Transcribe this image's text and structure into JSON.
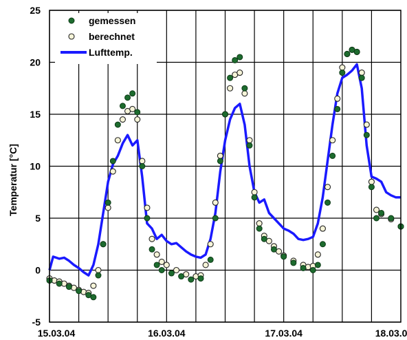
{
  "chart_data": {
    "type": "scatter",
    "title": "",
    "xlabel": "",
    "ylabel": "Temperatur [°C]",
    "ylim": [
      -5,
      25
    ],
    "xlim": [
      "15.03.04",
      "18.03.04"
    ],
    "grid": true,
    "legend_position": "top-left",
    "y_ticks": [
      "-5",
      "0",
      "5",
      "10",
      "15",
      "20",
      "25"
    ],
    "x_ticks": [
      "15.03.04",
      "16.03.04",
      "17.03.04",
      "18.03.04"
    ],
    "colors": {
      "gemessen": "#1d6b2e",
      "berechnet": "#f6f4d8",
      "Lufttemp.": "#1a1aff"
    },
    "series": [
      {
        "name": "gemessen",
        "style": "filled-marker",
        "points": [
          [
            "15.03.04 00:00",
            -1.0
          ],
          [
            "15.03.04 02:00",
            -1.3
          ],
          [
            "15.03.04 04:00",
            -1.6
          ],
          [
            "15.03.04 06:00",
            -2.0
          ],
          [
            "15.03.04 08:00",
            -2.4
          ],
          [
            "15.03.04 09:00",
            -2.6
          ],
          [
            "15.03.04 10:00",
            -0.5
          ],
          [
            "15.03.04 11:00",
            2.5
          ],
          [
            "15.03.04 12:00",
            6.5
          ],
          [
            "15.03.04 13:00",
            10.5
          ],
          [
            "15.03.04 14:00",
            14.0
          ],
          [
            "15.03.04 15:00",
            15.8
          ],
          [
            "15.03.04 16:00",
            16.6
          ],
          [
            "15.03.04 17:00",
            17.0
          ],
          [
            "15.03.04 18:00",
            15.2
          ],
          [
            "15.03.04 19:00",
            10.0
          ],
          [
            "15.03.04 20:00",
            5.0
          ],
          [
            "15.03.04 21:00",
            2.0
          ],
          [
            "15.03.04 22:00",
            0.5
          ],
          [
            "15.03.04 23:00",
            0.0
          ],
          [
            "16.03.04 01:00",
            -0.3
          ],
          [
            "16.03.04 03:00",
            -0.6
          ],
          [
            "16.03.04 05:00",
            -0.9
          ],
          [
            "16.03.04 07:00",
            -0.8
          ],
          [
            "16.03.04 09:00",
            1.0
          ],
          [
            "16.03.04 10:00",
            5.0
          ],
          [
            "16.03.04 11:00",
            10.5
          ],
          [
            "16.03.04 12:00",
            15.0
          ],
          [
            "16.03.04 13:00",
            18.5
          ],
          [
            "16.03.04 14:00",
            20.2
          ],
          [
            "16.03.04 15:00",
            20.5
          ],
          [
            "16.03.04 16:00",
            17.5
          ],
          [
            "16.03.04 17:00",
            12.0
          ],
          [
            "16.03.04 18:00",
            7.0
          ],
          [
            "16.03.04 19:00",
            4.0
          ],
          [
            "16.03.04 20:00",
            3.0
          ],
          [
            "16.03.04 22:00",
            2.0
          ],
          [
            "17.03.04 00:00",
            1.3
          ],
          [
            "17.03.04 02:00",
            0.7
          ],
          [
            "17.03.04 04:00",
            0.2
          ],
          [
            "17.03.04 06:00",
            0.0
          ],
          [
            "17.03.04 07:00",
            0.5
          ],
          [
            "17.03.04 08:00",
            2.5
          ],
          [
            "17.03.04 09:00",
            6.5
          ],
          [
            "17.03.04 10:00",
            11.0
          ],
          [
            "17.03.04 11:00",
            15.5
          ],
          [
            "17.03.04 12:00",
            19.0
          ],
          [
            "17.03.04 13:00",
            20.8
          ],
          [
            "17.03.04 14:00",
            21.2
          ],
          [
            "17.03.04 15:00",
            21.0
          ],
          [
            "17.03.04 16:00",
            18.5
          ],
          [
            "17.03.04 17:00",
            13.0
          ],
          [
            "17.03.04 18:00",
            8.0
          ],
          [
            "17.03.04 19:00",
            5.0
          ],
          [
            "17.03.04 20:00",
            5.5
          ],
          [
            "17.03.04 22:00",
            5.0
          ],
          [
            "18.03.04 00:00",
            4.2
          ]
        ]
      },
      {
        "name": "berechnet",
        "style": "open-marker",
        "points": [
          [
            "15.03.04 00:00",
            -0.8
          ],
          [
            "15.03.04 01:00",
            -1.0
          ],
          [
            "15.03.04 02:00",
            -1.1
          ],
          [
            "15.03.04 03:00",
            -1.3
          ],
          [
            "15.03.04 04:00",
            -1.5
          ],
          [
            "15.03.04 05:00",
            -1.7
          ],
          [
            "15.03.04 06:00",
            -1.9
          ],
          [
            "15.03.04 07:00",
            -2.1
          ],
          [
            "15.03.04 08:00",
            -2.2
          ],
          [
            "15.03.04 09:00",
            -1.5
          ],
          [
            "15.03.04 10:00",
            0.0
          ],
          [
            "15.03.04 11:00",
            2.5
          ],
          [
            "15.03.04 12:00",
            6.0
          ],
          [
            "15.03.04 13:00",
            9.5
          ],
          [
            "15.03.04 14:00",
            12.5
          ],
          [
            "15.03.04 15:00",
            14.5
          ],
          [
            "15.03.04 16:00",
            15.3
          ],
          [
            "15.03.04 17:00",
            15.5
          ],
          [
            "15.03.04 18:00",
            14.5
          ],
          [
            "15.03.04 19:00",
            10.5
          ],
          [
            "15.03.04 20:00",
            6.0
          ],
          [
            "15.03.04 21:00",
            3.0
          ],
          [
            "15.03.04 22:00",
            1.5
          ],
          [
            "15.03.04 23:00",
            0.8
          ],
          [
            "16.03.04 00:00",
            0.5
          ],
          [
            "16.03.04 02:00",
            0.0
          ],
          [
            "16.03.04 04:00",
            -0.4
          ],
          [
            "16.03.04 06:00",
            -0.6
          ],
          [
            "16.03.04 07:00",
            -0.5
          ],
          [
            "16.03.04 08:00",
            0.5
          ],
          [
            "16.03.04 09:00",
            2.5
          ],
          [
            "16.03.04 10:00",
            6.5
          ],
          [
            "16.03.04 11:00",
            11.0
          ],
          [
            "16.03.04 12:00",
            15.0
          ],
          [
            "16.03.04 13:00",
            17.5
          ],
          [
            "16.03.04 14:00",
            18.8
          ],
          [
            "16.03.04 15:00",
            19.0
          ],
          [
            "16.03.04 16:00",
            17.0
          ],
          [
            "16.03.04 17:00",
            12.5
          ],
          [
            "16.03.04 18:00",
            7.5
          ],
          [
            "16.03.04 19:00",
            4.5
          ],
          [
            "16.03.04 20:00",
            3.3
          ],
          [
            "16.03.04 21:00",
            2.8
          ],
          [
            "16.03.04 22:00",
            2.3
          ],
          [
            "16.03.04 23:00",
            1.8
          ],
          [
            "17.03.04 00:00",
            1.4
          ],
          [
            "17.03.04 02:00",
            0.9
          ],
          [
            "17.03.04 04:00",
            0.5
          ],
          [
            "17.03.04 05:00",
            0.3
          ],
          [
            "17.03.04 06:00",
            0.4
          ],
          [
            "17.03.04 07:00",
            1.5
          ],
          [
            "17.03.04 08:00",
            4.0
          ],
          [
            "17.03.04 09:00",
            8.0
          ],
          [
            "17.03.04 10:00",
            12.5
          ],
          [
            "17.03.04 11:00",
            16.5
          ],
          [
            "17.03.04 12:00",
            19.5
          ],
          [
            "17.03.04 13:00",
            20.8
          ],
          [
            "17.03.04 14:00",
            21.2
          ],
          [
            "17.03.04 15:00",
            21.0
          ],
          [
            "17.03.04 16:00",
            19.0
          ],
          [
            "17.03.04 17:00",
            14.0
          ],
          [
            "17.03.04 18:00",
            8.5
          ],
          [
            "17.03.04 19:00",
            5.8
          ],
          [
            "17.03.04 20:00",
            5.4
          ],
          [
            "17.03.04 22:00",
            4.9
          ],
          [
            "18.03.04 00:00",
            4.2
          ]
        ]
      },
      {
        "name": "Lufttemp.",
        "style": "line",
        "points": [
          [
            "15.03.04 00:00",
            0.0
          ],
          [
            "15.03.04 00:45",
            1.3
          ],
          [
            "15.03.04 02:00",
            1.1
          ],
          [
            "15.03.04 03:00",
            1.2
          ],
          [
            "15.03.04 04:00",
            0.9
          ],
          [
            "15.03.04 05:00",
            0.5
          ],
          [
            "15.03.04 06:00",
            0.2
          ],
          [
            "15.03.04 07:00",
            -0.2
          ],
          [
            "15.03.04 08:00",
            -0.5
          ],
          [
            "15.03.04 09:00",
            0.5
          ],
          [
            "15.03.04 10:00",
            2.5
          ],
          [
            "15.03.04 11:00",
            5.5
          ],
          [
            "15.03.04 12:00",
            8.5
          ],
          [
            "15.03.04 13:00",
            10.2
          ],
          [
            "15.03.04 14:00",
            11.0
          ],
          [
            "15.03.04 15:00",
            12.2
          ],
          [
            "15.03.04 16:00",
            13.0
          ],
          [
            "15.03.04 17:00",
            12.0
          ],
          [
            "15.03.04 18:00",
            12.5
          ],
          [
            "15.03.04 19:00",
            9.0
          ],
          [
            "15.03.04 20:00",
            4.5
          ],
          [
            "15.03.04 21:00",
            4.0
          ],
          [
            "15.03.04 22:00",
            3.0
          ],
          [
            "15.03.04 23:00",
            3.4
          ],
          [
            "16.03.04 00:00",
            2.8
          ],
          [
            "16.03.04 01:00",
            2.5
          ],
          [
            "16.03.04 02:00",
            2.6
          ],
          [
            "16.03.04 03:00",
            2.2
          ],
          [
            "16.03.04 04:00",
            1.8
          ],
          [
            "16.03.04 05:00",
            1.5
          ],
          [
            "16.03.04 06:00",
            1.3
          ],
          [
            "16.03.04 07:00",
            1.2
          ],
          [
            "16.03.04 08:00",
            1.5
          ],
          [
            "16.03.04 09:00",
            3.0
          ],
          [
            "16.03.04 10:00",
            5.5
          ],
          [
            "16.03.04 11:00",
            9.5
          ],
          [
            "16.03.04 12:00",
            12.5
          ],
          [
            "16.03.04 13:00",
            14.5
          ],
          [
            "16.03.04 14:00",
            15.6
          ],
          [
            "16.03.04 15:00",
            16.0
          ],
          [
            "16.03.04 16:00",
            14.0
          ],
          [
            "16.03.04 17:00",
            10.0
          ],
          [
            "16.03.04 18:00",
            7.5
          ],
          [
            "16.03.04 19:00",
            6.5
          ],
          [
            "16.03.04 20:00",
            6.8
          ],
          [
            "16.03.04 21:00",
            5.5
          ],
          [
            "16.03.04 22:00",
            5.0
          ],
          [
            "16.03.04 23:00",
            4.5
          ],
          [
            "17.03.04 00:00",
            4.0
          ],
          [
            "17.03.04 01:00",
            3.8
          ],
          [
            "17.03.04 02:00",
            3.5
          ],
          [
            "17.03.04 03:00",
            3.0
          ],
          [
            "17.03.04 04:00",
            2.9
          ],
          [
            "17.03.04 05:00",
            3.0
          ],
          [
            "17.03.04 06:00",
            3.2
          ],
          [
            "17.03.04 07:00",
            4.5
          ],
          [
            "17.03.04 08:00",
            7.0
          ],
          [
            "17.03.04 09:00",
            10.5
          ],
          [
            "17.03.04 10:00",
            14.0
          ],
          [
            "17.03.04 11:00",
            17.0
          ],
          [
            "17.03.04 12:00",
            18.5
          ],
          [
            "17.03.04 13:00",
            18.8
          ],
          [
            "17.03.04 14:00",
            19.2
          ],
          [
            "17.03.04 15:00",
            19.8
          ],
          [
            "17.03.04 16:00",
            17.5
          ],
          [
            "17.03.04 17:00",
            12.0
          ],
          [
            "17.03.04 18:00",
            9.0
          ],
          [
            "17.03.04 19:00",
            8.8
          ],
          [
            "17.03.04 20:00",
            8.5
          ],
          [
            "17.03.04 21:00",
            7.5
          ],
          [
            "17.03.04 22:00",
            7.2
          ],
          [
            "17.03.04 23:00",
            7.0
          ],
          [
            "18.03.04 00:00",
            7.0
          ]
        ]
      }
    ]
  }
}
